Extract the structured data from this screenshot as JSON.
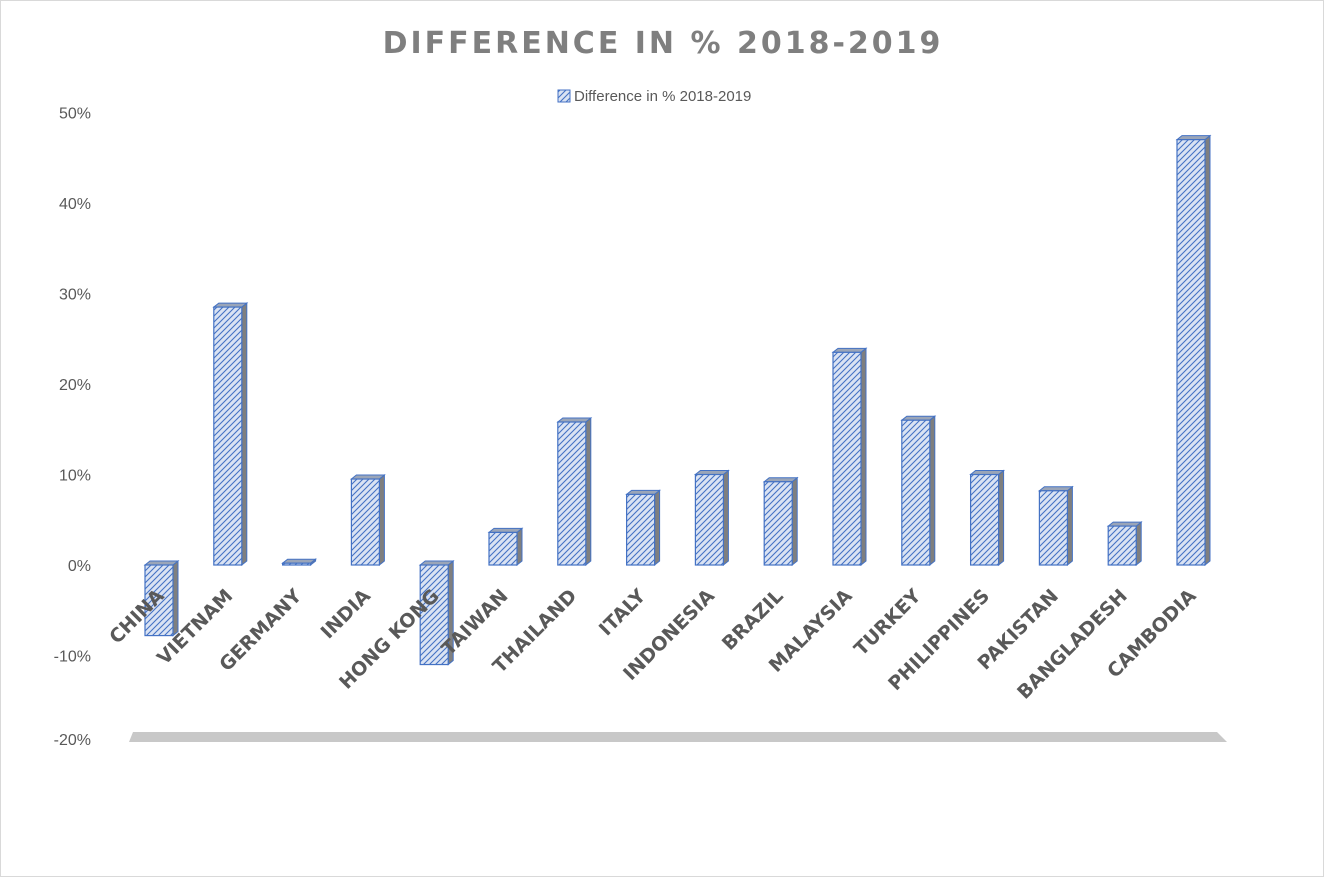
{
  "chart_data": {
    "type": "bar",
    "title": "DIFFERENCE IN % 2018-2019",
    "xlabel": "",
    "ylabel": "",
    "legend": {
      "entries": [
        "Difference in % 2018-2019"
      ],
      "position": "top"
    },
    "categories": [
      "CHINA",
      "VIETNAM",
      "GERMANY",
      "INDIA",
      "HONG KONG",
      "TAIWAN",
      "THAILAND",
      "ITALY",
      "INDONESIA",
      "BRAZIL",
      "MALAYSIA",
      "TURKEY",
      "PHILIPPINES",
      "PAKISTAN",
      "BANGLADESH",
      "CAMBODIA"
    ],
    "series": [
      {
        "name": "Difference in % 2018-2019",
        "values": [
          -7.8,
          28.5,
          0.2,
          9.5,
          -11.0,
          3.6,
          15.8,
          7.8,
          10.0,
          9.2,
          23.5,
          16.0,
          10.0,
          8.2,
          4.3,
          47.0
        ]
      }
    ],
    "ylim": [
      -20,
      50
    ],
    "yticks": [
      -20,
      -10,
      0,
      10,
      20,
      30,
      40,
      50
    ],
    "ytick_labels": [
      "-20%",
      "-10%",
      "0%",
      "10%",
      "20%",
      "30%",
      "40%",
      "50%"
    ],
    "grid": false,
    "colors": {
      "bar_edge": "#4472c4",
      "bar_fill": "#dae3f3",
      "bar_hatch": "#4472c4",
      "bar_side": "#7f7f7f",
      "floor": "#c8c8c8",
      "text": "#595959",
      "title": "#7f7f7f"
    }
  }
}
